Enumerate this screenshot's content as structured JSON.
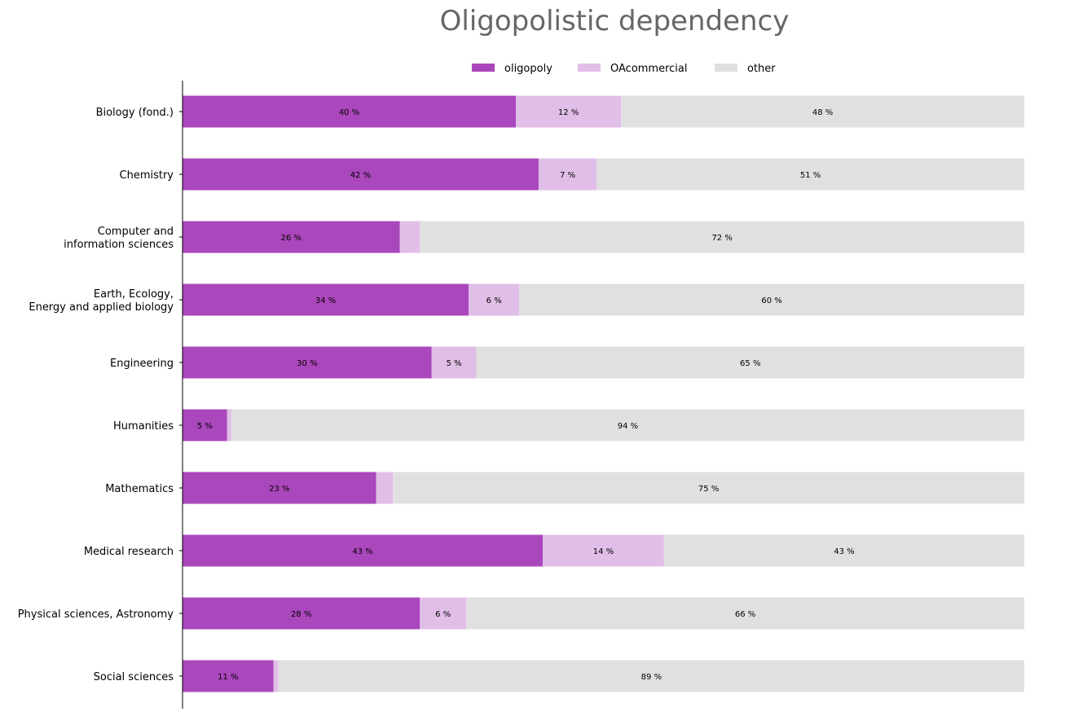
{
  "chart_data": {
    "type": "bar",
    "orientation": "horizontal",
    "stacked": true,
    "normalized": true,
    "title": "Oligopolistic dependency",
    "xlabel": "",
    "ylabel": "",
    "xlim": [
      0,
      100
    ],
    "grid": false,
    "legend_position": "top-center",
    "categories": [
      [
        "Biology (fond.)"
      ],
      [
        "Chemistry"
      ],
      [
        "Computer and ",
        "information sciences"
      ],
      [
        "Earth, Ecology, ",
        "Energy and applied biology"
      ],
      [
        "Engineering"
      ],
      [
        "Humanities"
      ],
      [
        "Mathematics"
      ],
      [
        "Medical research"
      ],
      [
        "Physical sciences, Astronomy"
      ],
      [
        "Social sciences"
      ]
    ],
    "series": [
      {
        "name": "oligopoly",
        "color": "#ab47bc",
        "values": [
          39.6,
          42.3,
          25.8,
          34.0,
          29.6,
          5.3,
          23.0,
          42.8,
          28.2,
          10.8
        ],
        "labels": [
          "40 %",
          "42 %",
          "26 %",
          "34 %",
          "30 %",
          "5 %",
          "23 %",
          "43 %",
          "28 %",
          "11 %"
        ]
      },
      {
        "name": "OAcommercial",
        "color": "#e1bee7",
        "values": [
          12.5,
          6.9,
          2.4,
          6.0,
          5.3,
          0.5,
          2.0,
          14.4,
          5.5,
          0.6
        ],
        "labels": [
          "12 %",
          "7 %",
          "",
          "6 %",
          "5 %",
          "",
          "",
          "14 %",
          "6 %",
          ""
        ]
      },
      {
        "name": "other",
        "color": "#e0e0e0",
        "values": [
          47.9,
          50.8,
          71.8,
          60.0,
          65.1,
          94.2,
          75.0,
          42.8,
          66.3,
          88.6
        ],
        "labels": [
          "48 %",
          "51 %",
          "72 %",
          "60 %",
          "65 %",
          "94 %",
          "75 %",
          "43 %",
          "66 %",
          "89 %"
        ]
      }
    ]
  }
}
